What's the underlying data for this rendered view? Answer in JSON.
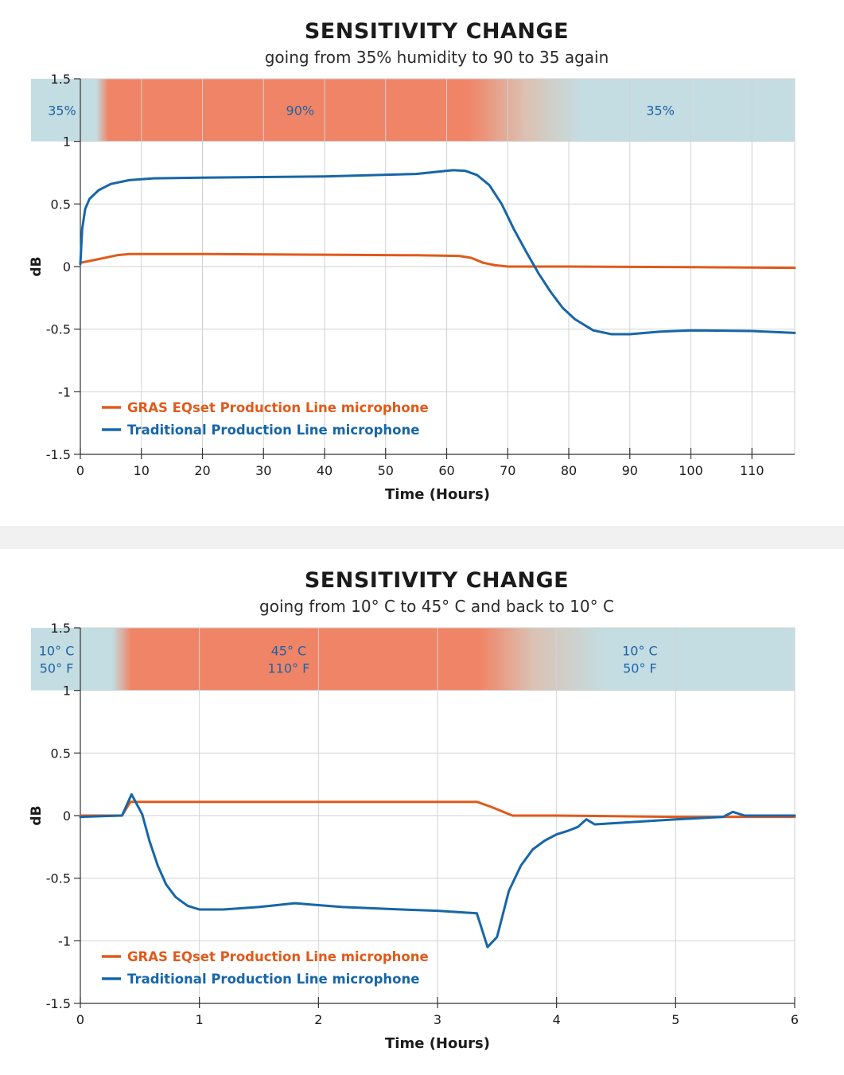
{
  "chart_data": [
    {
      "type": "line",
      "title": "SENSITIVITY CHANGE",
      "subtitle": "going from 35% humidity to 90 to 35 again",
      "xlabel": "Time (Hours)",
      "ylabel": "dB",
      "xlim": [
        0,
        117
      ],
      "ylim": [
        -1.5,
        1.5
      ],
      "xticks": [
        0,
        10,
        20,
        30,
        40,
        50,
        60,
        70,
        80,
        90,
        100,
        110
      ],
      "yticks": [
        -1.5,
        -1,
        -0.5,
        0,
        0.5,
        1,
        1.5
      ],
      "ytick_labels": [
        "-1.5",
        "-1",
        "-0.5",
        "0",
        "0.5",
        "1",
        "1.5"
      ],
      "grid": true,
      "legend_position": "bottom-left",
      "band": {
        "y_from": 1,
        "y_to": 1.5,
        "cool_color": "#c3dde2",
        "warm_color": "#f08466",
        "label_color": "#1f63a4",
        "stops": [
          [
            0,
            "cool"
          ],
          [
            2.6,
            "cool"
          ],
          [
            4.6,
            "warm"
          ],
          [
            63.5,
            "warm"
          ],
          [
            73,
            "mix"
          ],
          [
            82,
            "cool"
          ],
          [
            117,
            "cool"
          ]
        ],
        "labels": [
          {
            "x": -3,
            "lines": [
              "35%"
            ]
          },
          {
            "x": 36,
            "lines": [
              "90%"
            ]
          },
          {
            "x": 95,
            "lines": [
              "35%"
            ]
          }
        ]
      },
      "series": [
        {
          "name": "GRAS EQset Production Line microphone",
          "color": "#e05a1b",
          "x": [
            0,
            3,
            6,
            8,
            20,
            40,
            55,
            62,
            64,
            66,
            68,
            70,
            80,
            100,
            117
          ],
          "y": [
            0.03,
            0.06,
            0.09,
            0.1,
            0.1,
            0.095,
            0.09,
            0.085,
            0.07,
            0.03,
            0.01,
            0.0,
            0.0,
            -0.005,
            -0.01
          ]
        },
        {
          "name": "Traditional Production Line microphone",
          "color": "#1766a8",
          "x": [
            0,
            0.3,
            0.8,
            1.5,
            3,
            5,
            8,
            12,
            20,
            40,
            55,
            58,
            61,
            63,
            65,
            67,
            69,
            71,
            73,
            75,
            77,
            79,
            81,
            84,
            87,
            90,
            95,
            100,
            110,
            117
          ],
          "y": [
            0.02,
            0.3,
            0.46,
            0.54,
            0.61,
            0.66,
            0.69,
            0.705,
            0.71,
            0.72,
            0.74,
            0.755,
            0.77,
            0.765,
            0.73,
            0.65,
            0.5,
            0.3,
            0.12,
            -0.05,
            -0.2,
            -0.33,
            -0.42,
            -0.51,
            -0.54,
            -0.54,
            -0.52,
            -0.51,
            -0.515,
            -0.53
          ]
        }
      ]
    },
    {
      "type": "line",
      "title": "SENSITIVITY CHANGE",
      "subtitle": "going from 10° C to 45° C and back to 10° C",
      "xlabel": "Time (Hours)",
      "ylabel": "dB",
      "xlim": [
        0,
        6
      ],
      "ylim": [
        -1.5,
        1.5
      ],
      "xticks": [
        0,
        1,
        2,
        3,
        4,
        5,
        6
      ],
      "yticks": [
        -1.5,
        -1,
        -0.5,
        0,
        0.5,
        1,
        1.5
      ],
      "ytick_labels": [
        "-1.5",
        "-1",
        "-0.5",
        "0",
        "0.5",
        "1",
        "1.5"
      ],
      "grid": true,
      "legend_position": "bottom-left",
      "band": {
        "y_from": 1,
        "y_to": 1.5,
        "cool_color": "#c3dde2",
        "warm_color": "#f08466",
        "label_color": "#1f63a4",
        "stops": [
          [
            0,
            "cool"
          ],
          [
            0.27,
            "cool"
          ],
          [
            0.43,
            "warm"
          ],
          [
            3.35,
            "warm"
          ],
          [
            3.8,
            "mix"
          ],
          [
            4.4,
            "cool"
          ],
          [
            6,
            "cool"
          ]
        ],
        "labels": [
          {
            "x": -0.2,
            "lines": [
              "10° C",
              "50° F"
            ]
          },
          {
            "x": 1.75,
            "lines": [
              "45° C",
              "110° F"
            ]
          },
          {
            "x": 4.7,
            "lines": [
              "10° C",
              "50° F"
            ]
          }
        ]
      },
      "series": [
        {
          "name": "GRAS EQset Production Line microphone",
          "color": "#e05a1b",
          "x": [
            0,
            0.35,
            0.42,
            1,
            2,
            3,
            3.33,
            3.45,
            3.63,
            4,
            5,
            5.4,
            6
          ],
          "y": [
            0.0,
            0.0,
            0.11,
            0.11,
            0.11,
            0.11,
            0.11,
            0.07,
            0.0,
            0.0,
            -0.01,
            -0.01,
            -0.01
          ]
        },
        {
          "name": "Traditional Production Line microphone",
          "color": "#1766a8",
          "x": [
            0,
            0.35,
            0.43,
            0.52,
            0.58,
            0.65,
            0.72,
            0.8,
            0.9,
            1.0,
            1.2,
            1.5,
            1.8,
            2.2,
            2.7,
            3.0,
            3.33,
            3.38,
            3.42,
            3.5,
            3.6,
            3.7,
            3.8,
            3.9,
            4.0,
            4.1,
            4.18,
            4.25,
            4.32,
            4.5,
            5.0,
            5.4,
            5.48,
            5.58,
            5.7,
            6
          ],
          "y": [
            -0.01,
            0.0,
            0.17,
            0.01,
            -0.2,
            -0.4,
            -0.55,
            -0.65,
            -0.72,
            -0.75,
            -0.75,
            -0.73,
            -0.7,
            -0.73,
            -0.75,
            -0.76,
            -0.78,
            -0.93,
            -1.05,
            -0.97,
            -0.6,
            -0.4,
            -0.27,
            -0.2,
            -0.15,
            -0.12,
            -0.09,
            -0.03,
            -0.07,
            -0.06,
            -0.03,
            -0.01,
            0.03,
            0.0,
            0.0,
            0.0
          ]
        }
      ]
    }
  ]
}
